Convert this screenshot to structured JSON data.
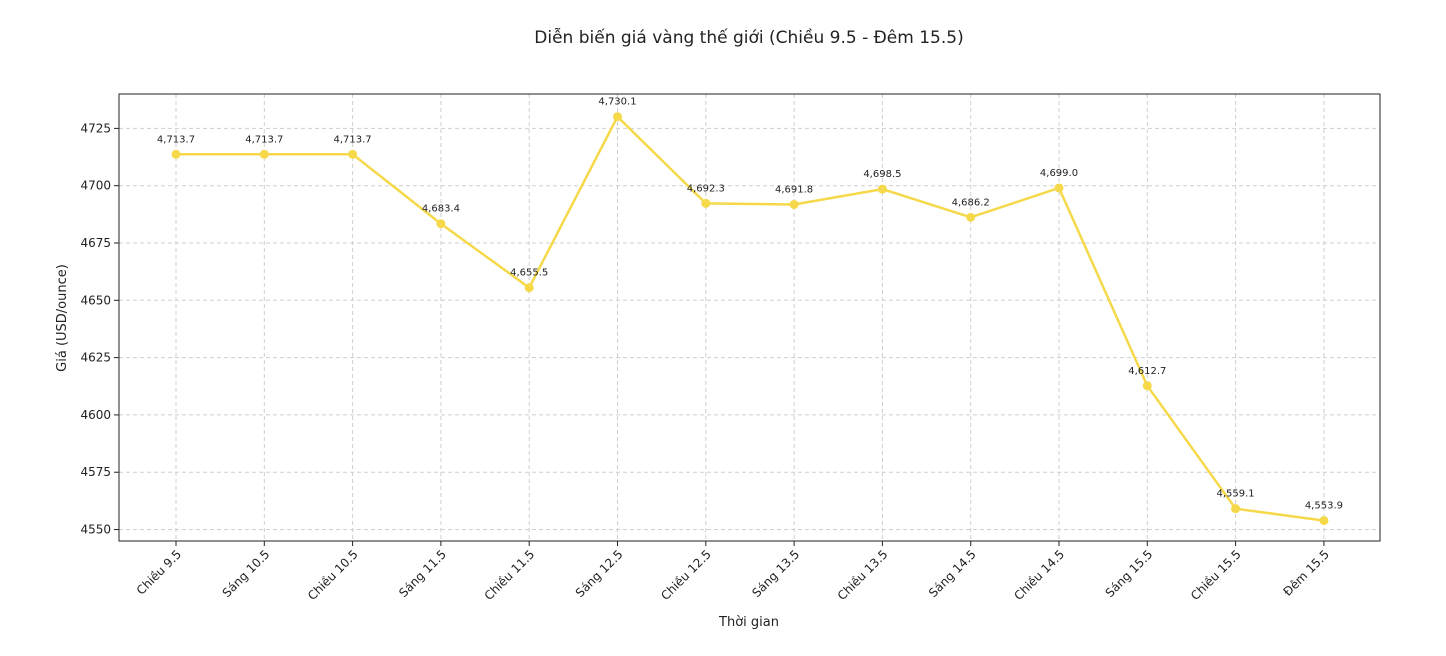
{
  "chart_data": {
    "type": "line",
    "title": "Diễn biến giá vàng thế giới (Chiều 9.5 - Đêm 15.5)",
    "xlabel": "Thời gian",
    "ylabel": "Giá (USD/ounce)",
    "categories": [
      "Chiều 9.5",
      "Sáng 10.5",
      "Chiều 10.5",
      "Sáng 11.5",
      "Chiều 11.5",
      "Sáng 12.5",
      "Chiều 12.5",
      "Sáng 13.5",
      "Chiều 13.5",
      "Sáng 14.5",
      "Chiều 14.5",
      "Sáng 15.5",
      "Chiều 15.5",
      "Đêm 15.5"
    ],
    "values": [
      4713.7,
      4713.7,
      4713.7,
      4683.4,
      4655.5,
      4730.1,
      4692.3,
      4691.8,
      4698.5,
      4686.2,
      4699.0,
      4612.7,
      4559.1,
      4553.9
    ],
    "value_labels": [
      "4,713.7",
      "4,713.7",
      "4,713.7",
      "4,683.4",
      "4,655.5",
      "4,730.1",
      "4,692.3",
      "4,691.8",
      "4,698.5",
      "4,686.2",
      "4,699.0",
      "4,612.7",
      "4,559.1",
      "4,553.9"
    ],
    "yticks": [
      4550,
      4575,
      4600,
      4625,
      4650,
      4675,
      4700,
      4725
    ],
    "ylim": [
      4545,
      4740
    ],
    "grid": true,
    "color": "#f5d94a"
  }
}
